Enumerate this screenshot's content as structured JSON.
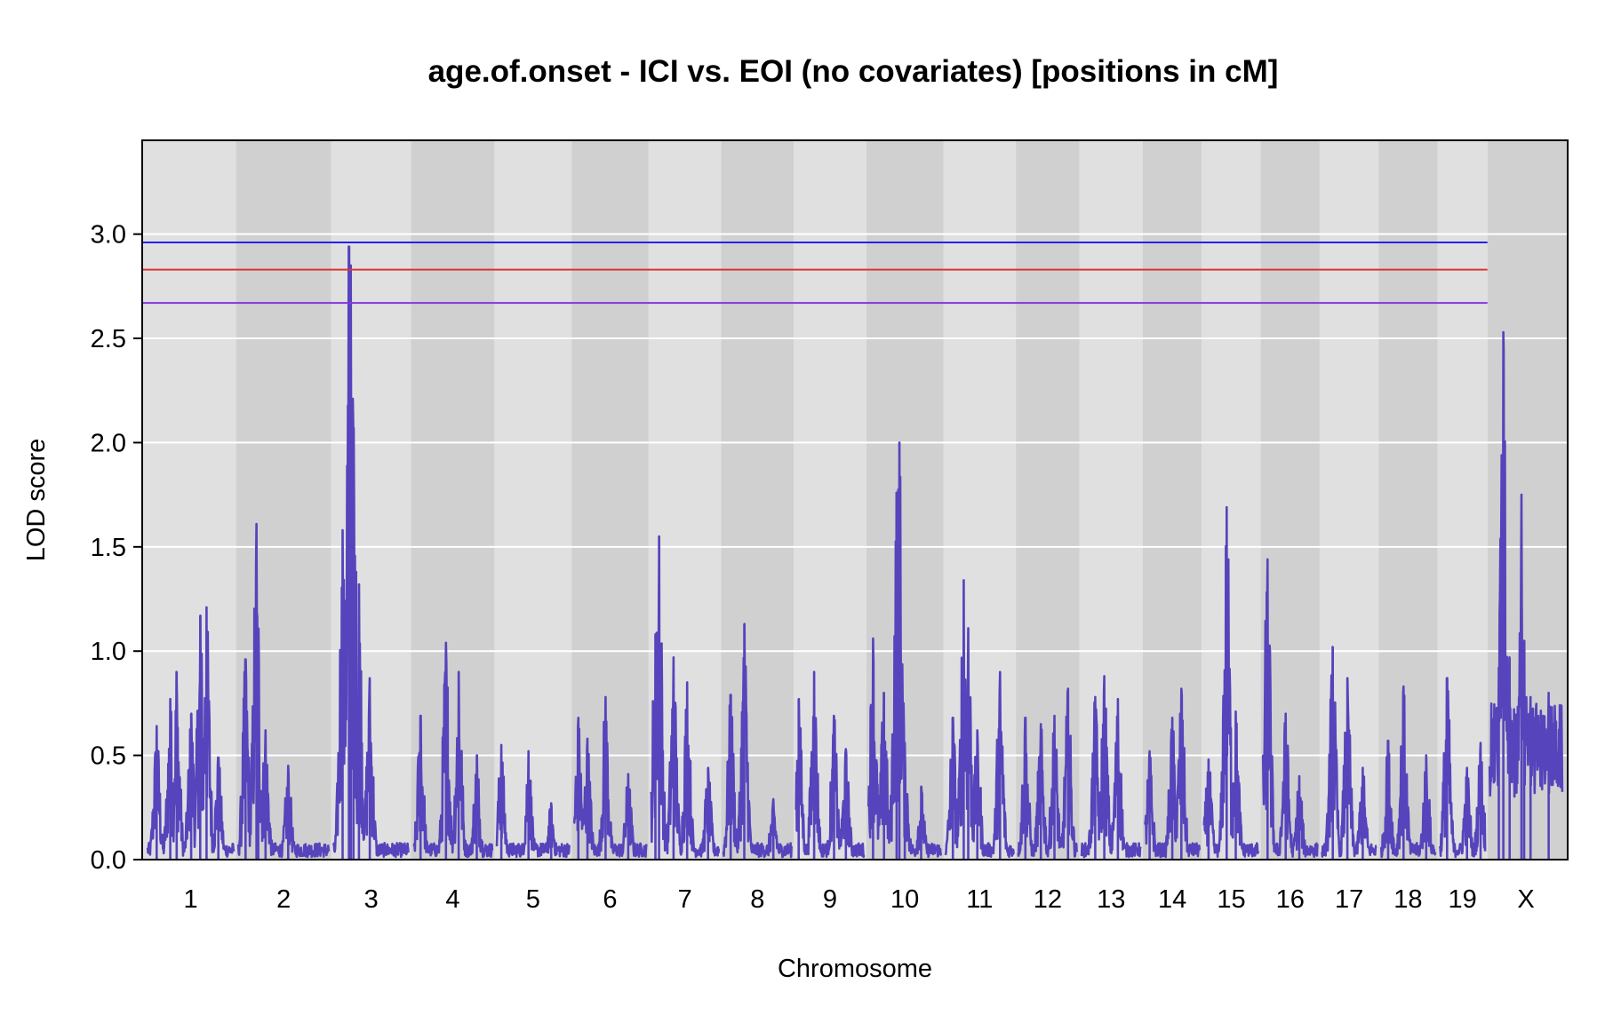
{
  "chart_data": {
    "type": "line",
    "title": "age.of.onset - ICI vs. EOI (no covariates) [positions in cM]",
    "xlabel": "Chromosome",
    "ylabel": "LOD score",
    "ylim": [
      0,
      3.45
    ],
    "yticks": [
      0.0,
      0.5,
      1.0,
      1.5,
      2.0,
      2.5,
      3.0
    ],
    "ytick_labels": [
      "0.0",
      "0.5",
      "1.0",
      "1.5",
      "2.0",
      "2.5",
      "3.0"
    ],
    "grid": true,
    "colors": {
      "band_light": "#e0e0e0",
      "band_dark": "#d0d0d0",
      "gridline": "#ffffff",
      "trace": "#5544bb",
      "threshold_blue": "#2222ee",
      "threshold_red": "#dd3333",
      "threshold_purple": "#8833dd"
    },
    "thresholds": [
      {
        "value": 2.96,
        "color": "#2222ee"
      },
      {
        "value": 2.83,
        "color": "#dd3333"
      },
      {
        "value": 2.67,
        "color": "#8833dd"
      }
    ],
    "chromosomes": [
      {
        "label": "1",
        "start": 0,
        "end": 95
      },
      {
        "label": "2",
        "start": 100,
        "end": 200
      },
      {
        "label": "3",
        "start": 205,
        "end": 288
      },
      {
        "label": "4",
        "start": 293,
        "end": 380
      },
      {
        "label": "5",
        "start": 385,
        "end": 465
      },
      {
        "label": "6",
        "start": 470,
        "end": 550
      },
      {
        "label": "7",
        "start": 555,
        "end": 630
      },
      {
        "label": "8",
        "start": 635,
        "end": 710
      },
      {
        "label": "9",
        "start": 715,
        "end": 790
      },
      {
        "label": "10",
        "start": 795,
        "end": 875
      },
      {
        "label": "11",
        "start": 880,
        "end": 955
      },
      {
        "label": "12",
        "start": 960,
        "end": 1025
      },
      {
        "label": "13",
        "start": 1030,
        "end": 1095
      },
      {
        "label": "14",
        "start": 1100,
        "end": 1160
      },
      {
        "label": "15",
        "start": 1165,
        "end": 1225
      },
      {
        "label": "16",
        "start": 1230,
        "end": 1290
      },
      {
        "label": "17",
        "start": 1295,
        "end": 1355
      },
      {
        "label": "18",
        "start": 1360,
        "end": 1420
      },
      {
        "label": "19",
        "start": 1425,
        "end": 1475
      },
      {
        "label": "X",
        "start": 1480,
        "end": 1560
      }
    ],
    "series": [
      {
        "peaks": [
          {
            "chr": "1",
            "pos": 10,
            "lod": 0.64
          },
          {
            "chr": "1",
            "pos": 25,
            "lod": 0.77
          },
          {
            "chr": "1",
            "pos": 32,
            "lod": 0.9
          },
          {
            "chr": "1",
            "pos": 48,
            "lod": 0.7
          },
          {
            "chr": "1",
            "pos": 58,
            "lod": 1.17
          },
          {
            "chr": "1",
            "pos": 65,
            "lod": 1.21
          },
          {
            "chr": "1",
            "pos": 78,
            "lod": 0.49
          },
          {
            "chr": "2",
            "pos": 8,
            "lod": 0.96
          },
          {
            "chr": "2",
            "pos": 20,
            "lod": 1.61
          },
          {
            "chr": "2",
            "pos": 22,
            "lod": 0.96
          },
          {
            "chr": "2",
            "pos": 30,
            "lod": 0.62
          },
          {
            "chr": "2",
            "pos": 55,
            "lod": 0.45
          },
          {
            "chr": "3",
            "pos": 10,
            "lod": 1.58
          },
          {
            "chr": "3",
            "pos": 17,
            "lod": 2.94
          },
          {
            "chr": "3",
            "pos": 19,
            "lod": 2.85
          },
          {
            "chr": "3",
            "pos": 22,
            "lod": 2.07
          },
          {
            "chr": "3",
            "pos": 28,
            "lod": 1.32
          },
          {
            "chr": "3",
            "pos": 40,
            "lod": 0.87
          },
          {
            "chr": "4",
            "pos": 8,
            "lod": 0.69
          },
          {
            "chr": "4",
            "pos": 36,
            "lod": 1.04
          },
          {
            "chr": "4",
            "pos": 50,
            "lod": 0.9
          },
          {
            "chr": "4",
            "pos": 70,
            "lod": 0.5
          },
          {
            "chr": "5",
            "pos": 5,
            "lod": 0.55
          },
          {
            "chr": "5",
            "pos": 35,
            "lod": 0.52
          },
          {
            "chr": "5",
            "pos": 60,
            "lod": 0.27
          },
          {
            "chr": "6",
            "pos": 5,
            "lod": 0.68
          },
          {
            "chr": "6",
            "pos": 15,
            "lod": 0.58
          },
          {
            "chr": "6",
            "pos": 35,
            "lod": 0.78
          },
          {
            "chr": "6",
            "pos": 60,
            "lod": 0.41
          },
          {
            "chr": "7",
            "pos": 5,
            "lod": 1.08
          },
          {
            "chr": "7",
            "pos": 9,
            "lod": 1.55
          },
          {
            "chr": "7",
            "pos": 25,
            "lod": 0.97
          },
          {
            "chr": "7",
            "pos": 40,
            "lod": 0.85
          },
          {
            "chr": "7",
            "pos": 63,
            "lod": 0.44
          },
          {
            "chr": "8",
            "pos": 8,
            "lod": 0.79
          },
          {
            "chr": "8",
            "pos": 23,
            "lod": 1.13
          },
          {
            "chr": "8",
            "pos": 55,
            "lod": 0.29
          },
          {
            "chr": "9",
            "pos": 3,
            "lod": 0.77
          },
          {
            "chr": "9",
            "pos": 20,
            "lod": 0.9
          },
          {
            "chr": "9",
            "pos": 42,
            "lod": 0.69
          },
          {
            "chr": "9",
            "pos": 55,
            "lod": 0.53
          },
          {
            "chr": "10",
            "pos": 5,
            "lod": 1.06
          },
          {
            "chr": "10",
            "pos": 17,
            "lod": 0.8
          },
          {
            "chr": "10",
            "pos": 31,
            "lod": 1.76
          },
          {
            "chr": "10",
            "pos": 34,
            "lod": 2.0
          },
          {
            "chr": "10",
            "pos": 40,
            "lod": 0.56
          },
          {
            "chr": "10",
            "pos": 58,
            "lod": 0.35
          },
          {
            "chr": "11",
            "pos": 8,
            "lod": 0.68
          },
          {
            "chr": "11",
            "pos": 20,
            "lod": 1.34
          },
          {
            "chr": "11",
            "pos": 25,
            "lod": 1.11
          },
          {
            "chr": "11",
            "pos": 35,
            "lod": 0.62
          },
          {
            "chr": "11",
            "pos": 60,
            "lod": 0.9
          },
          {
            "chr": "12",
            "pos": 8,
            "lod": 0.68
          },
          {
            "chr": "12",
            "pos": 25,
            "lod": 0.65
          },
          {
            "chr": "12",
            "pos": 40,
            "lod": 0.69
          },
          {
            "chr": "12",
            "pos": 55,
            "lod": 0.82
          },
          {
            "chr": "13",
            "pos": 15,
            "lod": 0.78
          },
          {
            "chr": "13",
            "pos": 25,
            "lod": 0.88
          },
          {
            "chr": "13",
            "pos": 40,
            "lod": 0.77
          },
          {
            "chr": "14",
            "pos": 5,
            "lod": 0.52
          },
          {
            "chr": "14",
            "pos": 30,
            "lod": 0.68
          },
          {
            "chr": "14",
            "pos": 40,
            "lod": 0.82
          },
          {
            "chr": "15",
            "pos": 5,
            "lod": 0.48
          },
          {
            "chr": "15",
            "pos": 25,
            "lod": 1.69
          },
          {
            "chr": "15",
            "pos": 35,
            "lod": 0.71
          },
          {
            "chr": "16",
            "pos": 5,
            "lod": 1.44
          },
          {
            "chr": "16",
            "pos": 25,
            "lod": 0.7
          },
          {
            "chr": "16",
            "pos": 40,
            "lod": 0.4
          },
          {
            "chr": "17",
            "pos": 12,
            "lod": 1.02
          },
          {
            "chr": "17",
            "pos": 28,
            "lod": 0.87
          },
          {
            "chr": "17",
            "pos": 45,
            "lod": 0.44
          },
          {
            "chr": "18",
            "pos": 8,
            "lod": 0.57
          },
          {
            "chr": "18",
            "pos": 25,
            "lod": 0.83
          },
          {
            "chr": "18",
            "pos": 50,
            "lod": 0.5
          },
          {
            "chr": "19",
            "pos": 8,
            "lod": 0.87
          },
          {
            "chr": "19",
            "pos": 30,
            "lod": 0.44
          },
          {
            "chr": "19",
            "pos": 45,
            "lod": 0.56
          },
          {
            "chr": "X",
            "pos": 10,
            "lod": 0.92
          },
          {
            "chr": "X",
            "pos": 15,
            "lod": 2.53
          },
          {
            "chr": "X",
            "pos": 22,
            "lod": 0.97
          },
          {
            "chr": "X",
            "pos": 35,
            "lod": 1.75
          },
          {
            "chr": "X",
            "pos": 38,
            "lod": 1.05
          },
          {
            "chr": "X",
            "pos": 45,
            "lod": 0.78
          },
          {
            "chr": "X",
            "pos": 65,
            "lod": 0.8
          }
        ]
      }
    ]
  }
}
